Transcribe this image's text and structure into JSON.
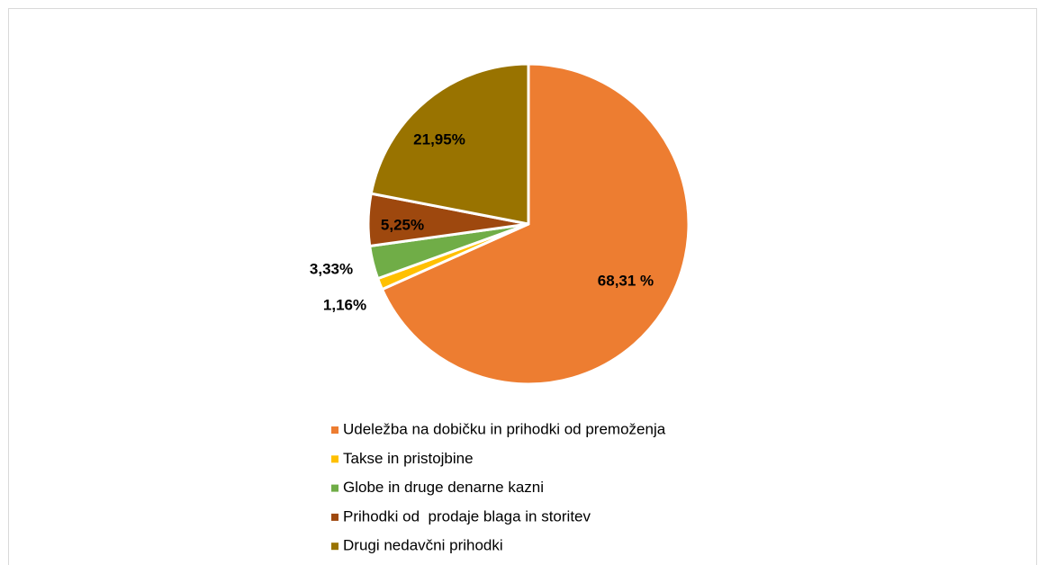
{
  "chart_data": {
    "type": "pie",
    "categories": [
      "Udeležba na dobičku in prihodki od premoženja",
      "Takse in pristojbine",
      "Globe in druge denarne kazni",
      "Prihodki od  prodaje blaga in storitev",
      "Drugi nedavčni prihodki"
    ],
    "values": [
      68.31,
      1.16,
      3.33,
      5.25,
      21.95
    ],
    "value_labels": [
      "68,31 %",
      "1,16%",
      "3,33%",
      "5,25%",
      "21,95%"
    ],
    "colors": [
      "#ed7d31",
      "#ffc000",
      "#70ad47",
      "#9e480e",
      "#997300"
    ],
    "legend": "bottom"
  }
}
